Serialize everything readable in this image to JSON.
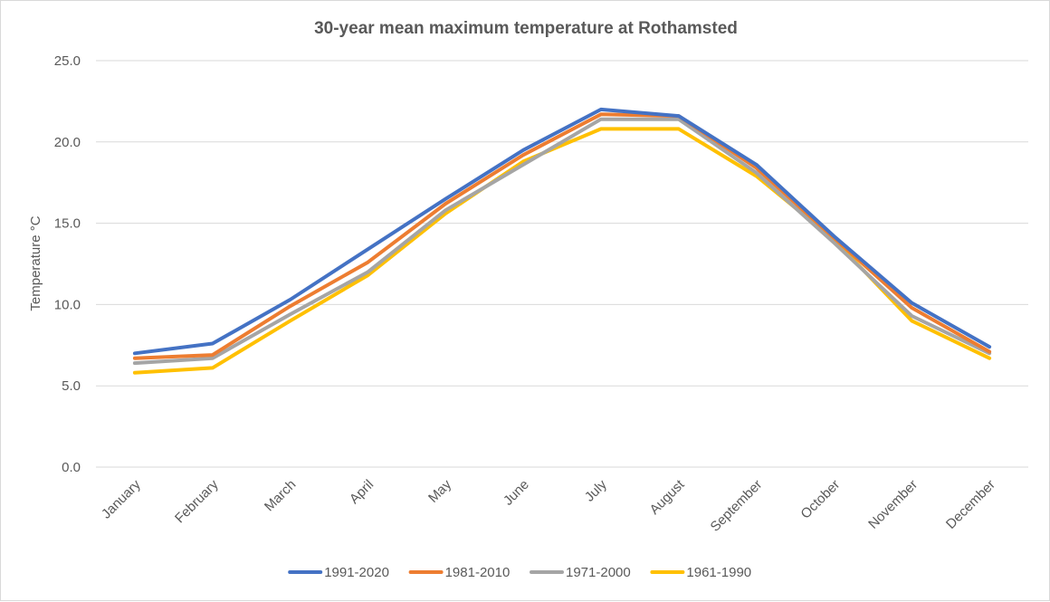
{
  "chart_data": {
    "type": "line",
    "title": "30-year mean maximum temperature at Rothamsted",
    "xlabel": "",
    "ylabel": "Temperature °C",
    "ylim": [
      0,
      25
    ],
    "yticks": [
      "0.0",
      "5.0",
      "10.0",
      "15.0",
      "20.0",
      "25.0"
    ],
    "grid": true,
    "legend_position": "bottom",
    "categories": [
      "January",
      "February",
      "March",
      "April",
      "May",
      "June",
      "July",
      "August",
      "September",
      "October",
      "November",
      "December"
    ],
    "series": [
      {
        "name": "1991-2020",
        "color": "#4472C4",
        "values": [
          7.0,
          7.6,
          10.3,
          13.4,
          16.5,
          19.5,
          22.0,
          21.6,
          18.6,
          14.2,
          10.1,
          7.4
        ]
      },
      {
        "name": "1981-2010",
        "color": "#ED7D31",
        "values": [
          6.7,
          6.9,
          9.9,
          12.6,
          16.2,
          19.2,
          21.7,
          21.6,
          18.4,
          14.1,
          9.8,
          7.1
        ]
      },
      {
        "name": "1971-2000",
        "color": "#A5A5A5",
        "values": [
          6.4,
          6.7,
          9.4,
          12.0,
          15.8,
          18.6,
          21.4,
          21.4,
          18.1,
          13.8,
          9.3,
          7.0
        ]
      },
      {
        "name": "1961-1990",
        "color": "#FFC000",
        "values": [
          5.8,
          6.1,
          9.0,
          11.8,
          15.6,
          18.8,
          20.8,
          20.8,
          17.9,
          14.0,
          9.0,
          6.7
        ]
      }
    ]
  }
}
